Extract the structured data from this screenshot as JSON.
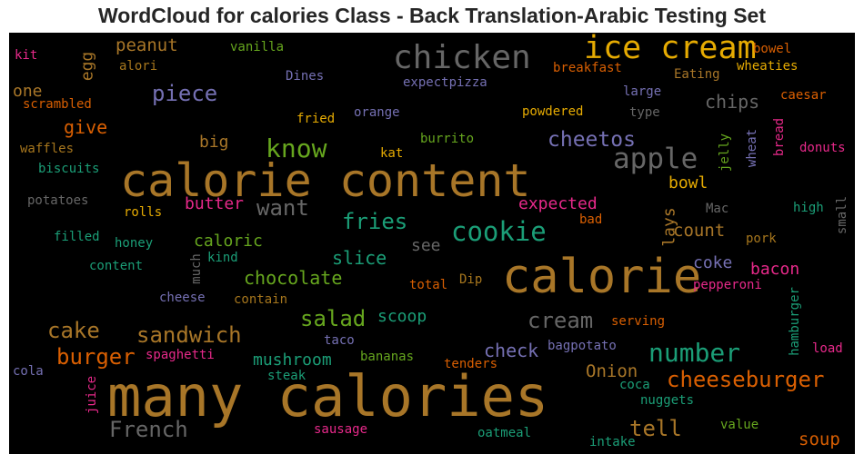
{
  "title": "WordCloud for calories Class - Back Translation-Arabic Testing Set",
  "palette": {
    "background": "#000000",
    "bronze": "#a87628",
    "orange": "#d95f02",
    "gold": "#e6ab02",
    "teal": "#1b9e77",
    "green": "#66a61e",
    "purple": "#7570b3",
    "magenta": "#e7298a",
    "brown": "#a6761d",
    "gray": "#666666"
  },
  "words": {
    "many_calories": "many calories",
    "calorie_content": "calorie content",
    "calorie": "calorie",
    "ice_cream": "ice cream",
    "chicken": "chicken",
    "apple": "apple",
    "know": "know",
    "cheetos": "cheetos",
    "piece": "piece",
    "cookie": "cookie",
    "fries": "fries",
    "want": "want",
    "number": "number",
    "cheeseburger": "cheeseburger",
    "cream": "cream",
    "salad": "salad",
    "sandwich": "sandwich",
    "burger": "burger",
    "cake": "cake",
    "French": "French",
    "tell": "tell",
    "chocolate": "chocolate",
    "Onion": "Onion",
    "soup": "soup",
    "chips": "chips",
    "check": "check",
    "slice": "slice",
    "peanut": "peanut",
    "egg": "egg",
    "give": "give",
    "one": "one",
    "big": "big",
    "bowl": "bowl",
    "count": "count",
    "caloric": "caloric",
    "butter": "butter",
    "expected": "expected",
    "lays": "lays",
    "mushroom": "mushroom",
    "scoop": "scoop",
    "bacon": "bacon",
    "coke": "coke",
    "see": "see",
    "kit": "kit",
    "vanilla": "vanilla",
    "alori": "alori",
    "Dines": "Dines",
    "breakfast": "breakfast",
    "bowel": "bowel",
    "wheaties": "wheaties",
    "Eating": "Eating",
    "expectpizza": "expectpizza",
    "scrambled": "scrambled",
    "large": "large",
    "caesar": "caesar",
    "fried": "fried",
    "orange": "orange",
    "powdered": "powdered",
    "type": "type",
    "bread": "bread",
    "waffles": "waffles",
    "burrito": "burrito",
    "jelly": "jelly",
    "wheat": "wheat",
    "donuts": "donuts",
    "kat": "kat",
    "biscuits": "biscuits",
    "potatoes": "potatoes",
    "rolls": "rolls",
    "Mac": "Mac",
    "high": "high",
    "small": "small",
    "bad": "bad",
    "filled": "filled",
    "honey": "honey",
    "pork": "pork",
    "content": "content",
    "much": "much",
    "kind": "kind",
    "total": "total",
    "Dip": "Dip",
    "pepperoni": "pepperoni",
    "cheese": "cheese",
    "contain": "contain",
    "hamburger": "hamburger",
    "serving": "serving",
    "taco": "taco",
    "spaghetti": "spaghetti",
    "bananas": "bananas",
    "bagpotato": "bagpotato",
    "load": "load",
    "cola": "cola",
    "steak": "steak",
    "tenders": "tenders",
    "juice": "juice",
    "coca": "coca",
    "nuggets": "nuggets",
    "sausage": "sausage",
    "oatmeal": "oatmeal",
    "value": "value",
    "intake": "intake"
  }
}
